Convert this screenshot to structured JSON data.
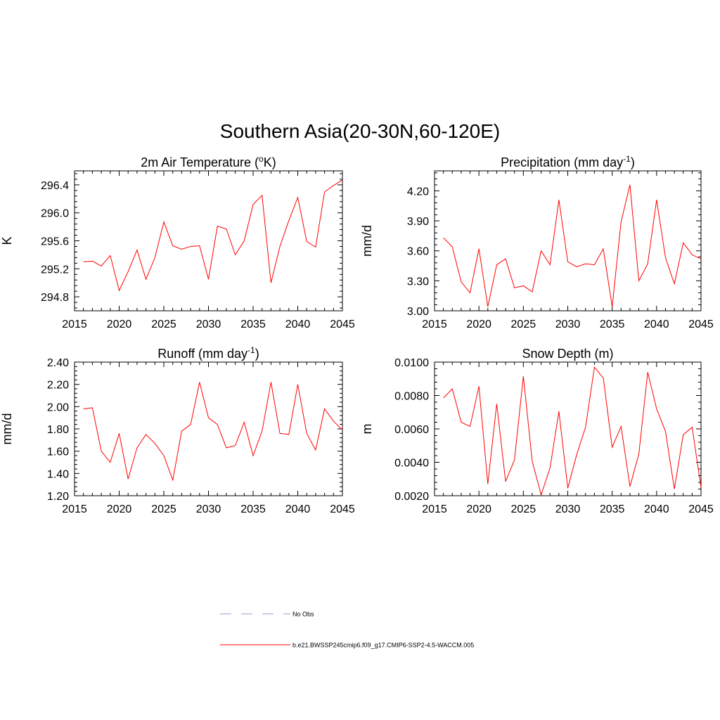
{
  "figure": {
    "title": "Southern Asia(20-30N,60-120E)"
  },
  "legend": {
    "entries": [
      {
        "label": "No Obs",
        "color": "#9999cc",
        "dash": "dashed"
      },
      {
        "label": "b.e21.BWSSP245cmip6.f09_g17.CMIP6-SSP2-4.5-WACCM.005",
        "color": "#ff0000",
        "dash": "solid"
      }
    ]
  },
  "chart_data": [
    {
      "type": "line",
      "title": "2m Air Temperature (",
      "title_sup": "o",
      "title_after": "K)",
      "ylabel": "K",
      "xlim": [
        2015,
        2045
      ],
      "ylim": [
        294.6,
        296.6
      ],
      "xticks": [
        2015,
        2020,
        2025,
        2030,
        2035,
        2040,
        2045
      ],
      "xticklabels": [
        "2015",
        "2020",
        "2025",
        "2030",
        "2035",
        "2040",
        "2045"
      ],
      "yticks": [
        294.8,
        295.2,
        295.6,
        296.0,
        296.4
      ],
      "yticklabels": [
        "294.8",
        "295.2",
        "295.6",
        "296.0",
        "296.4"
      ],
      "series": [
        {
          "color": "#ff0000",
          "x": [
            2016,
            2017,
            2018,
            2019,
            2020,
            2021,
            2022,
            2023,
            2024,
            2025,
            2026,
            2027,
            2028,
            2029,
            2030,
            2031,
            2032,
            2033,
            2034,
            2035,
            2036,
            2037,
            2038,
            2039,
            2040,
            2041,
            2042,
            2043,
            2044,
            2045
          ],
          "values": [
            295.3,
            295.31,
            295.24,
            295.39,
            294.89,
            295.16,
            295.47,
            295.05,
            295.36,
            295.87,
            295.53,
            295.48,
            295.52,
            295.53,
            295.05,
            295.81,
            295.77,
            295.4,
            295.6,
            296.12,
            296.25,
            295.0,
            295.52,
            295.89,
            296.22,
            295.59,
            295.51,
            296.3,
            296.39,
            296.47
          ]
        }
      ]
    },
    {
      "type": "line",
      "title": "Precipitation (mm day",
      "title_sup": "-1",
      "title_after": ")",
      "ylabel": "mm/d",
      "xlim": [
        2015,
        2045
      ],
      "ylim": [
        3.0,
        4.4
      ],
      "xticks": [
        2015,
        2020,
        2025,
        2030,
        2035,
        2040,
        2045
      ],
      "xticklabels": [
        "2015",
        "2020",
        "2025",
        "2030",
        "2035",
        "2040",
        "2045"
      ],
      "yticks": [
        3.0,
        3.3,
        3.6,
        3.9,
        4.2
      ],
      "yticklabels": [
        "3.00",
        "3.30",
        "3.60",
        "3.90",
        "4.20"
      ],
      "series": [
        {
          "color": "#ff0000",
          "x": [
            2016,
            2017,
            2018,
            2019,
            2020,
            2021,
            2022,
            2023,
            2024,
            2025,
            2026,
            2027,
            2028,
            2029,
            2030,
            2031,
            2032,
            2033,
            2034,
            2035,
            2036,
            2037,
            2038,
            2039,
            2040,
            2041,
            2042,
            2043,
            2044,
            2045
          ],
          "values": [
            3.73,
            3.64,
            3.29,
            3.18,
            3.62,
            3.04,
            3.46,
            3.52,
            3.23,
            3.25,
            3.19,
            3.6,
            3.46,
            4.11,
            3.49,
            3.44,
            3.47,
            3.46,
            3.62,
            3.04,
            3.89,
            4.26,
            3.3,
            3.47,
            4.11,
            3.53,
            3.27,
            3.68,
            3.56,
            3.52
          ]
        }
      ]
    },
    {
      "type": "line",
      "title": "Runoff (mm day",
      "title_sup": "-1",
      "title_after": ")",
      "ylabel": "mm/d",
      "xlim": [
        2015,
        2045
      ],
      "ylim": [
        1.2,
        2.4
      ],
      "xticks": [
        2015,
        2020,
        2025,
        2030,
        2035,
        2040,
        2045
      ],
      "xticklabels": [
        "2015",
        "2020",
        "2025",
        "2030",
        "2035",
        "2040",
        "2045"
      ],
      "yticks": [
        1.2,
        1.4,
        1.6,
        1.8,
        2.0,
        2.2,
        2.4
      ],
      "yticklabels": [
        "1.20",
        "1.40",
        "1.60",
        "1.80",
        "2.00",
        "2.20",
        "2.40"
      ],
      "series": [
        {
          "color": "#ff0000",
          "x": [
            2016,
            2017,
            2018,
            2019,
            2020,
            2021,
            2022,
            2023,
            2024,
            2025,
            2026,
            2027,
            2028,
            2029,
            2030,
            2031,
            2032,
            2033,
            2034,
            2035,
            2036,
            2037,
            2038,
            2039,
            2040,
            2041,
            2042,
            2043,
            2044,
            2045
          ],
          "values": [
            1.98,
            1.99,
            1.6,
            1.5,
            1.76,
            1.35,
            1.63,
            1.75,
            1.67,
            1.56,
            1.34,
            1.78,
            1.84,
            2.22,
            1.9,
            1.84,
            1.63,
            1.65,
            1.86,
            1.56,
            1.78,
            2.22,
            1.76,
            1.75,
            2.2,
            1.76,
            1.61,
            1.98,
            1.87,
            1.79
          ]
        }
      ]
    },
    {
      "type": "line",
      "title": "Snow Depth (m)",
      "title_sup": "",
      "title_after": "",
      "ylabel": "m",
      "xlim": [
        2015,
        2045
      ],
      "ylim": [
        0.002,
        0.01
      ],
      "xticks": [
        2015,
        2020,
        2025,
        2030,
        2035,
        2040,
        2045
      ],
      "xticklabels": [
        "2015",
        "2020",
        "2025",
        "2030",
        "2035",
        "2040",
        "2045"
      ],
      "yticks": [
        0.002,
        0.004,
        0.006,
        0.008,
        0.01
      ],
      "yticklabels": [
        "0.0020",
        "0.0040",
        "0.0060",
        "0.0080",
        "0.0100"
      ],
      "series": [
        {
          "color": "#ff0000",
          "x": [
            2016,
            2017,
            2018,
            2019,
            2020,
            2021,
            2022,
            2023,
            2024,
            2025,
            2026,
            2027,
            2028,
            2029,
            2030,
            2031,
            2032,
            2033,
            2034,
            2035,
            2036,
            2037,
            2038,
            2039,
            2040,
            2041,
            2042,
            2043,
            2044,
            2045
          ],
          "values": [
            0.00785,
            0.0084,
            0.0064,
            0.00615,
            0.00855,
            0.0027,
            0.0075,
            0.00285,
            0.00415,
            0.00915,
            0.00405,
            0.00205,
            0.00365,
            0.00705,
            0.00245,
            0.00445,
            0.0061,
            0.0097,
            0.00905,
            0.0049,
            0.00615,
            0.00255,
            0.0045,
            0.0094,
            0.0072,
            0.00585,
            0.0024,
            0.00565,
            0.0061,
            0.0025
          ]
        }
      ]
    }
  ]
}
